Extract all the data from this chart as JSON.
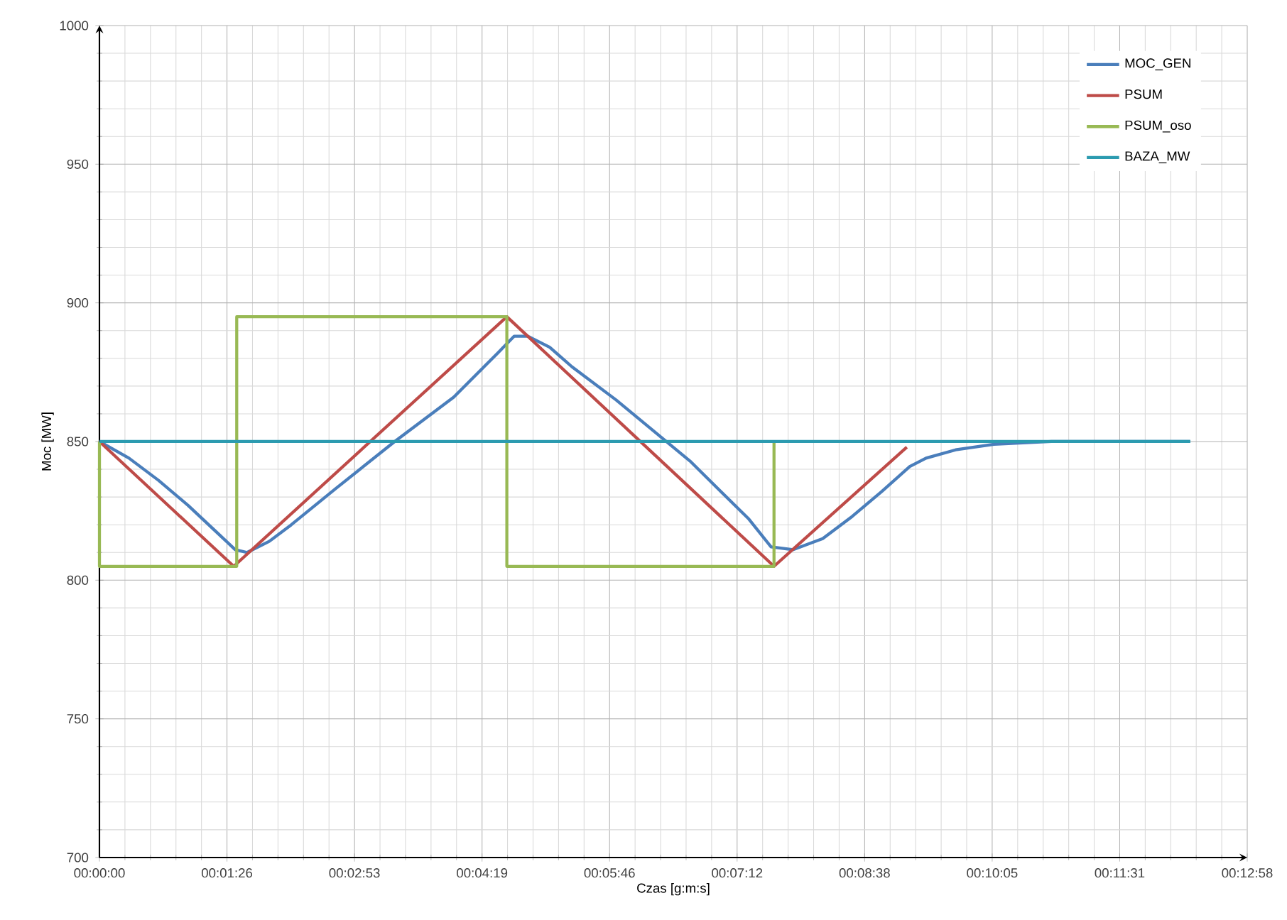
{
  "chart_data": {
    "type": "line",
    "xlabel": "Czas [g:m:s]",
    "ylabel": "Moc [MW]",
    "xlim": [
      0,
      777.6
    ],
    "ylim": [
      700,
      1000
    ],
    "xticks": [
      {
        "value": 0,
        "label": "00:00:00"
      },
      {
        "value": 86.4,
        "label": "00:01:26"
      },
      {
        "value": 172.8,
        "label": "00:02:53"
      },
      {
        "value": 259.2,
        "label": "00:04:19"
      },
      {
        "value": 345.6,
        "label": "00:05:46"
      },
      {
        "value": 432,
        "label": "00:07:12"
      },
      {
        "value": 518.4,
        "label": "00:08:38"
      },
      {
        "value": 604.8,
        "label": "00:10:05"
      },
      {
        "value": 691.2,
        "label": "00:11:31"
      },
      {
        "value": 777.6,
        "label": "00:12:58"
      }
    ],
    "yticks": [
      700,
      750,
      800,
      850,
      900,
      950,
      1000
    ],
    "grid": true,
    "legend": "top right",
    "marker": "none",
    "line_style": "solid",
    "series": [
      {
        "name": "MOC_GEN",
        "color": "#4a7ebb",
        "x": [
          0,
          20,
          40,
          60,
          80,
          92,
          100,
          115,
          130,
          160,
          200,
          240,
          270,
          281,
          290,
          305,
          320,
          350,
          400,
          440,
          455,
          470,
          490,
          510,
          530,
          549,
          560,
          580,
          606,
          645,
          739
        ],
        "values": [
          850,
          844,
          836,
          827,
          817,
          811,
          810,
          814,
          820,
          833,
          850,
          866,
          882,
          888,
          888,
          884,
          877,
          865,
          843,
          822,
          812,
          811,
          815,
          823,
          832,
          841,
          844,
          847,
          849,
          850,
          850
        ]
      },
      {
        "name": "PSUM",
        "color": "#be4b48",
        "x": [
          0,
          91,
          276,
          457,
          547
        ],
        "values": [
          850,
          805,
          895,
          805,
          848
        ]
      },
      {
        "name": "PSUM_oso",
        "color": "#98b954",
        "x": [
          0,
          0,
          93,
          93,
          276,
          276,
          457,
          457
        ],
        "values": [
          850,
          805,
          805,
          895,
          895,
          805,
          805,
          850
        ]
      },
      {
        "name": "BAZA_MW",
        "color": "#2c9bb0",
        "x": [
          0,
          739
        ],
        "values": [
          850,
          850
        ]
      }
    ]
  }
}
